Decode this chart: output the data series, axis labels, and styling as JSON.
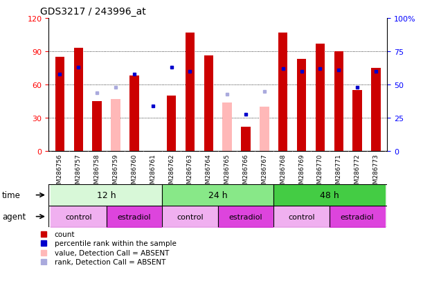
{
  "title": "GDS3217 / 243996_at",
  "samples": [
    "GSM286756",
    "GSM286757",
    "GSM286758",
    "GSM286759",
    "GSM286760",
    "GSM286761",
    "GSM286762",
    "GSM286763",
    "GSM286764",
    "GSM286765",
    "GSM286766",
    "GSM286767",
    "GSM286768",
    "GSM286769",
    "GSM286770",
    "GSM286771",
    "GSM286772",
    "GSM286773"
  ],
  "count_values": [
    85,
    93,
    45,
    null,
    68,
    null,
    50,
    107,
    86,
    null,
    22,
    null,
    107,
    83,
    97,
    90,
    55,
    75
  ],
  "count_absent": [
    null,
    null,
    null,
    47,
    null,
    null,
    null,
    null,
    null,
    44,
    null,
    40,
    null,
    null,
    null,
    null,
    null,
    null
  ],
  "percentile_rank": [
    58,
    63,
    null,
    null,
    58,
    34,
    63,
    60,
    null,
    null,
    28,
    null,
    62,
    60,
    62,
    61,
    48,
    60
  ],
  "rank_absent": [
    null,
    null,
    44,
    48,
    null,
    null,
    null,
    null,
    null,
    43,
    null,
    45,
    null,
    null,
    null,
    null,
    null,
    null
  ],
  "ylim_left": [
    0,
    120
  ],
  "ylim_right": [
    0,
    100
  ],
  "yticks_left": [
    0,
    30,
    60,
    90,
    120
  ],
  "yticks_right": [
    0,
    25,
    50,
    75,
    100
  ],
  "ytick_labels_right": [
    "0",
    "25",
    "50",
    "75",
    "100%"
  ],
  "time_groups": [
    {
      "label": "12 h",
      "start": 0,
      "end": 5,
      "color": "#d8f8d8"
    },
    {
      "label": "24 h",
      "start": 6,
      "end": 11,
      "color": "#88e888"
    },
    {
      "label": "48 h",
      "start": 12,
      "end": 17,
      "color": "#44cc44"
    }
  ],
  "agent_groups": [
    {
      "label": "control",
      "start": 0,
      "end": 2,
      "color": "#f0b0f0"
    },
    {
      "label": "estradiol",
      "start": 3,
      "end": 5,
      "color": "#dd44dd"
    },
    {
      "label": "control",
      "start": 6,
      "end": 8,
      "color": "#f0b0f0"
    },
    {
      "label": "estradiol",
      "start": 9,
      "end": 11,
      "color": "#dd44dd"
    },
    {
      "label": "control",
      "start": 12,
      "end": 14,
      "color": "#f0b0f0"
    },
    {
      "label": "estradiol",
      "start": 15,
      "end": 17,
      "color": "#dd44dd"
    }
  ],
  "bar_color_red": "#cc0000",
  "bar_color_pink": "#ffb8b8",
  "dot_color_blue": "#0000cc",
  "dot_color_lightblue": "#aaaadd",
  "label_bg_color": "#cccccc",
  "bar_width": 0.5,
  "legend_items": [
    {
      "color": "#cc0000",
      "label": "count"
    },
    {
      "color": "#0000cc",
      "label": "percentile rank within the sample"
    },
    {
      "color": "#ffb8b8",
      "label": "value, Detection Call = ABSENT"
    },
    {
      "color": "#aaaadd",
      "label": "rank, Detection Call = ABSENT"
    }
  ]
}
